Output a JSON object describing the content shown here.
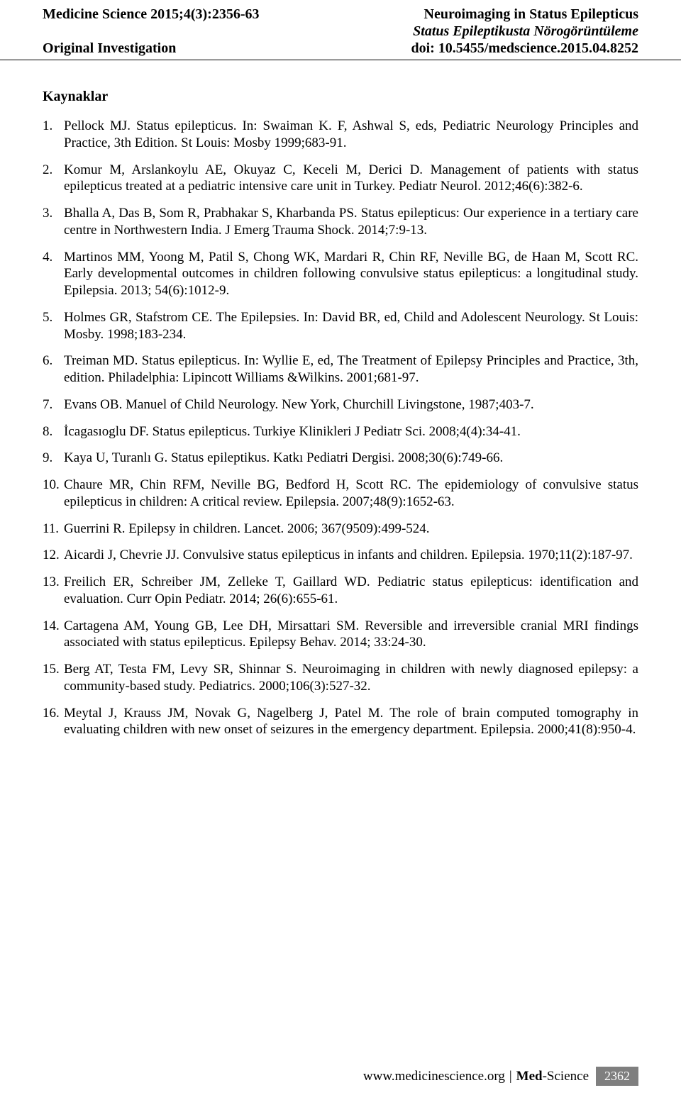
{
  "header": {
    "journal_ref": "Medicine Science 2015;4(3):2356-63",
    "title_en": "Neuroimaging in Status Epilepticus",
    "title_tr": "Status Epileptikusta Nörogörüntüleme",
    "article_type": "Original Investigation",
    "doi": "doi: 10.5455/medscience.2015.04.8252"
  },
  "section_heading": "Kaynaklar",
  "references": [
    "Pellock MJ. Status epilepticus. In: Swaiman K. F, Ashwal S, eds, Pediatric Neurology Principles and Practice, 3th Edition. St Louis: Mosby 1999;683-91.",
    "Komur M, Arslankoylu AE, Okuyaz C, Keceli M, Derici D. Management of patients with status epilepticus treated at a pediatric intensive care unit in Turkey. Pediatr Neurol. 2012;46(6):382-6.",
    "Bhalla A, Das B, Som R, Prabhakar S, Kharbanda PS. Status epilepticus: Our experience in a tertiary care centre in Northwestern India. J Emerg Trauma Shock. 2014;7:9-13.",
    "Martinos MM, Yoong M, Patil S, Chong WK, Mardari R, Chin RF, Neville BG, de Haan M, Scott RC. Early developmental outcomes in children following convulsive status epilepticus: a longitudinal study. Epilepsia. 2013; 54(6):1012-9.",
    "Holmes GR, Stafstrom CE. The Epilepsies. In: David BR, ed, Child and Adolescent Neurology. St Louis: Mosby. 1998;183-234.",
    "Treiman MD. Status epilepticus. In: Wyllie E, ed, The Treatment of Epilepsy Principles and Practice, 3th, edition. Philadelphia: Lipincott Williams &Wilkins. 2001;681-97.",
    "Evans OB. Manuel of Child Neurology. New York, Churchill Livingstone, 1987;403-7.",
    "İcagasıoglu DF. Status epilepticus. Turkiye Klinikleri J Pediatr Sci. 2008;4(4):34-41.",
    "Kaya U, Turanlı G. Status epileptikus. Katkı Pediatri Dergisi. 2008;30(6):749-66.",
    "Chaure MR, Chin RFM, Neville BG, Bedford H, Scott RC. The epidemiology of convulsive status epilepticus in children: A critical review. Epilepsia. 2007;48(9):1652-63.",
    "Guerrini R. Epilepsy in children. Lancet. 2006; 367(9509):499-524.",
    "Aicardi J, Chevrie JJ. Convulsive status epilepticus in infants and children. Epilepsia. 1970;11(2):187-97.",
    "Freilich ER, Schreiber JM, Zelleke T, Gaillard WD. Pediatric status epilepticus: identification and evaluation. Curr Opin Pediatr. 2014; 26(6):655-61.",
    "Cartagena AM, Young GB, Lee DH, Mirsattari SM. Reversible and irreversible cranial MRI findings associated with status epilepticus. Epilepsy Behav. 2014; 33:24-30.",
    "Berg AT, Testa FM, Levy SR, Shinnar S. Neuroimaging in children with newly diagnosed epilepsy: a community-based study. Pediatrics. 2000;106(3):527-32.",
    "Meytal J, Krauss JM, Novak G, Nagelberg J, Patel M. The role of brain computed tomography in evaluating children with new onset of seizures in the emergency department. Epilepsia. 2000;41(8):950-4."
  ],
  "footer": {
    "url": "www.medicinescience.org",
    "sep": "|",
    "brand_bold": "Med",
    "brand_rest": "-Science",
    "page_number": "2362",
    "badge_bg": "#7f7f7f",
    "badge_fg": "#ffffff"
  }
}
